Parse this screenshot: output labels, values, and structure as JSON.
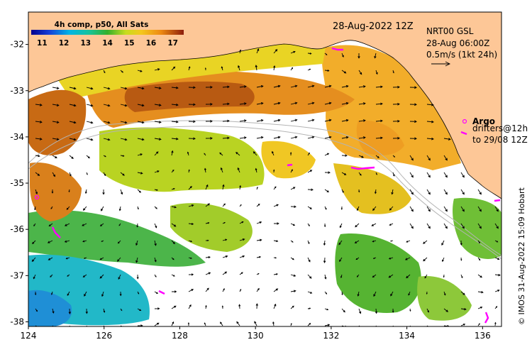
{
  "map": {
    "colorbar": {
      "title": "4h comp, p50, All Sats",
      "ticks": [
        "11",
        "12",
        "13",
        "14",
        "15",
        "16",
        "17"
      ],
      "min": 10.5,
      "max": 17.5
    },
    "date_label": "28-Aug-2022 12Z",
    "current_info": {
      "line1": "NRT00 GSL",
      "line2": "28-Aug 06:00Z",
      "line3": "0.5m/s (1kt 24h)"
    },
    "argo_label": "Argo",
    "drifters_line1": "drifters@12h",
    "drifters_line2": "to 29/08 12Z",
    "credit": "© IMOS 31-Aug-2022 15:09 Hobart",
    "x_ticks": [
      "124",
      "126",
      "128",
      "130",
      "132",
      "134",
      "136"
    ],
    "y_ticks": [
      "-32",
      "-33",
      "-34",
      "-35",
      "-36",
      "-37",
      "-38"
    ],
    "lon_range": [
      124,
      136.5
    ],
    "lat_range": [
      -38.1,
      -31.3
    ],
    "colors": {
      "land": "#fdc797",
      "argo": "#ff00ff",
      "drifter": "#ff00ff"
    }
  }
}
